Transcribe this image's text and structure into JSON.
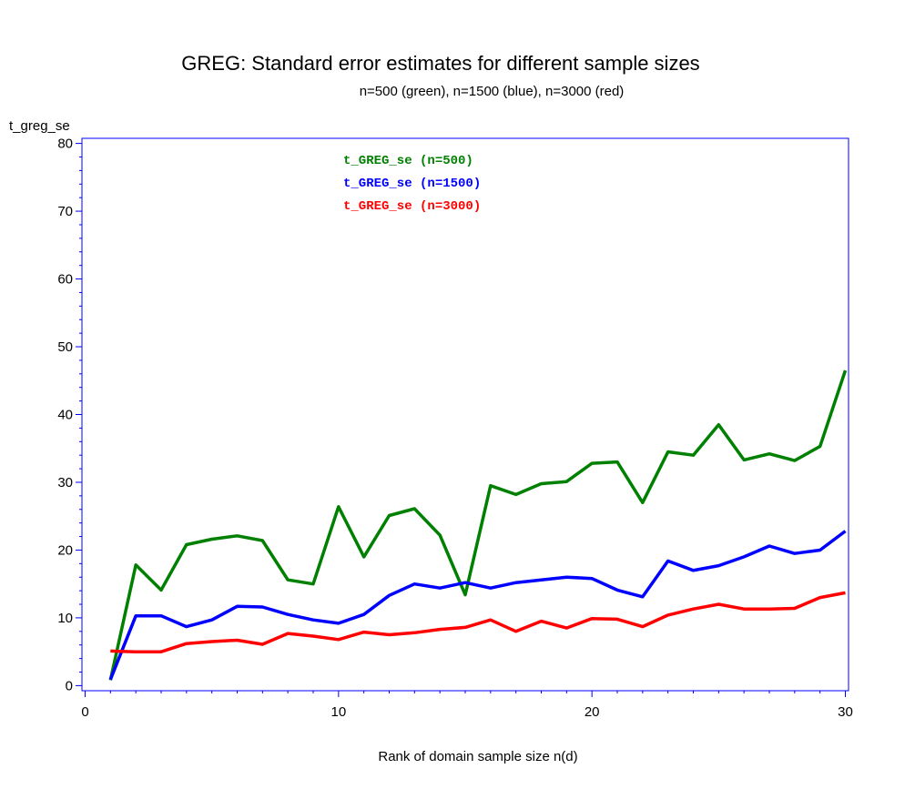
{
  "chart_data": {
    "type": "line",
    "title": "GREG: Standard error estimates for different sample sizes",
    "subtitle": "n=500 (green), n=1500 (blue), n=3000 (red)",
    "ylabel": "t_greg_se",
    "xlabel": "Rank of domain sample size n(d)",
    "xlim": [
      0,
      30
    ],
    "ylim": [
      0,
      80
    ],
    "xticks": [
      0,
      10,
      20,
      30
    ],
    "yticks": [
      0,
      10,
      20,
      30,
      40,
      50,
      60,
      70,
      80
    ],
    "legend_position": "top-center inside plot",
    "x": [
      1,
      2,
      3,
      4,
      5,
      6,
      7,
      8,
      9,
      10,
      11,
      12,
      13,
      14,
      15,
      16,
      17,
      18,
      19,
      20,
      21,
      22,
      23,
      24,
      25,
      26,
      27,
      28,
      29,
      30
    ],
    "series": [
      {
        "name": "t_GREG_se (n=500)",
        "color": "#008000",
        "values": [
          0.8,
          17.8,
          14.1,
          20.8,
          21.6,
          22.1,
          21.4,
          15.6,
          15.0,
          26.4,
          19.0,
          25.1,
          26.1,
          22.2,
          13.4,
          29.5,
          28.2,
          29.8,
          30.1,
          32.8,
          33.0,
          27.0,
          34.5,
          34.0,
          38.5,
          33.3,
          34.2,
          33.2,
          35.3,
          46.5
        ]
      },
      {
        "name": "t_GREG_se (n=1500)",
        "color": "#0000FF",
        "values": [
          0.9,
          10.3,
          10.3,
          8.7,
          9.7,
          11.7,
          11.6,
          10.5,
          9.7,
          9.2,
          10.5,
          13.3,
          15.0,
          14.4,
          15.2,
          14.4,
          15.2,
          15.6,
          16.0,
          15.8,
          14.1,
          13.1,
          18.4,
          17.0,
          17.7,
          19.0,
          20.6,
          19.5,
          20.0,
          22.8
        ]
      },
      {
        "name": "t_GREG_se (n=3000)",
        "color": "#FF0000",
        "values": [
          5.1,
          5.0,
          5.0,
          6.2,
          6.5,
          6.7,
          6.1,
          7.7,
          7.3,
          6.8,
          7.9,
          7.5,
          7.8,
          8.3,
          8.6,
          9.7,
          8.0,
          9.5,
          8.5,
          9.9,
          9.8,
          8.7,
          10.4,
          11.3,
          12.0,
          11.3,
          11.3,
          11.4,
          13.0,
          13.7
        ]
      }
    ]
  }
}
